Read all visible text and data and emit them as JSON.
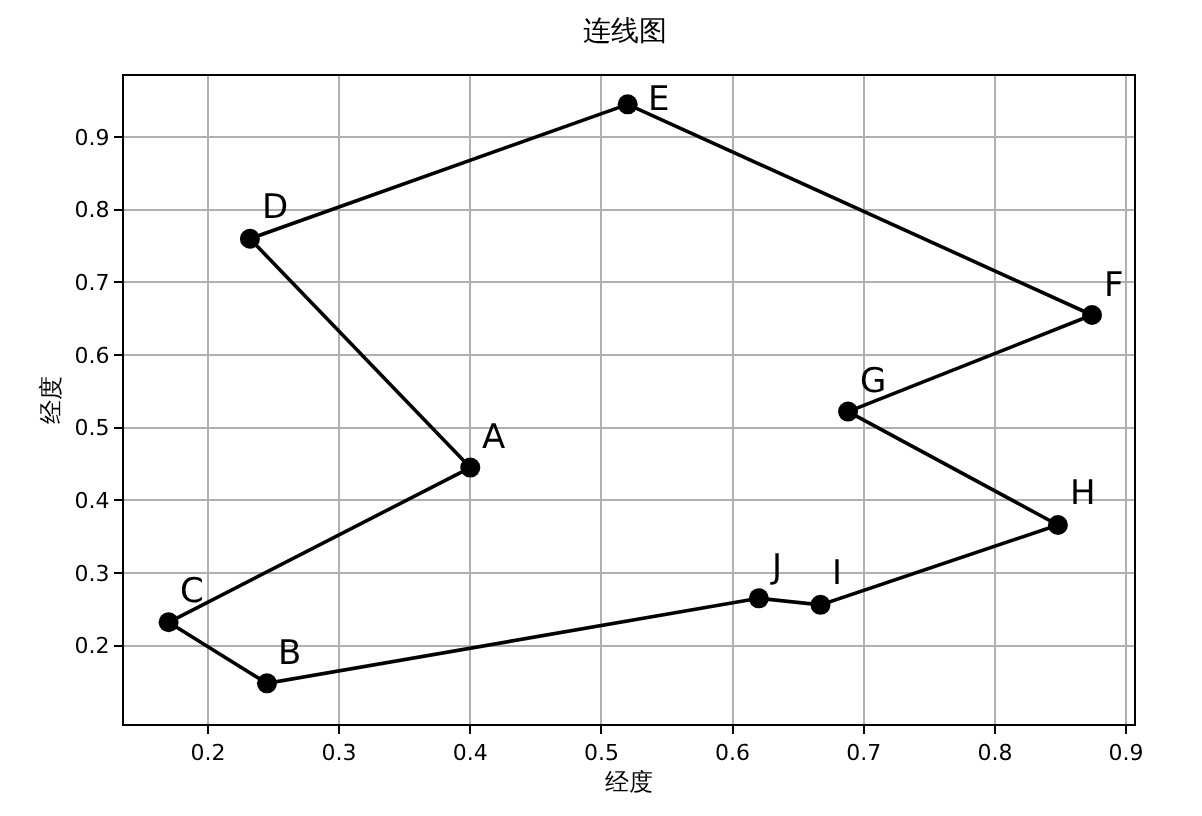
{
  "chart_data": {
    "type": "line",
    "title": "连线图",
    "xlabel": "经度",
    "ylabel": "经度",
    "x": [
      0.4,
      0.17,
      0.245,
      0.62,
      0.667,
      0.848,
      0.688,
      0.874,
      0.52,
      0.232
    ],
    "series": [
      {
        "marker": "circle",
        "color": "#000000",
        "values": [
          0.445,
          0.232,
          0.148,
          0.265,
          0.256,
          0.366,
          0.522,
          0.655,
          0.945,
          0.76
        ]
      },
      {
        "marker": "none",
        "color": "#000000",
        "x": [
          0.232,
          0.4
        ],
        "values": [
          0.76,
          0.445
        ]
      }
    ],
    "annotations": [
      {
        "text": "A",
        "x": 0.4,
        "y": 0.445
      },
      {
        "text": "B",
        "x": 0.245,
        "y": 0.148
      },
      {
        "text": "C",
        "x": 0.17,
        "y": 0.232
      },
      {
        "text": "D",
        "x": 0.232,
        "y": 0.76
      },
      {
        "text": "E",
        "x": 0.52,
        "y": 0.945
      },
      {
        "text": "F",
        "x": 0.874,
        "y": 0.655
      },
      {
        "text": "G",
        "x": 0.688,
        "y": 0.522
      },
      {
        "text": "H",
        "x": 0.848,
        "y": 0.366
      },
      {
        "text": "I",
        "x": 0.667,
        "y": 0.256
      },
      {
        "text": "J",
        "x": 0.62,
        "y": 0.265
      }
    ],
    "xlim": [
      0.136,
      0.906
    ],
    "ylim": [
      0.092,
      0.984
    ],
    "xticks": [
      0.2,
      0.3,
      0.4,
      0.5,
      0.6,
      0.7,
      0.8,
      0.9
    ],
    "yticks": [
      0.2,
      0.3,
      0.4,
      0.5,
      0.6,
      0.7,
      0.8,
      0.9
    ],
    "grid": true,
    "line_style": "solid"
  }
}
